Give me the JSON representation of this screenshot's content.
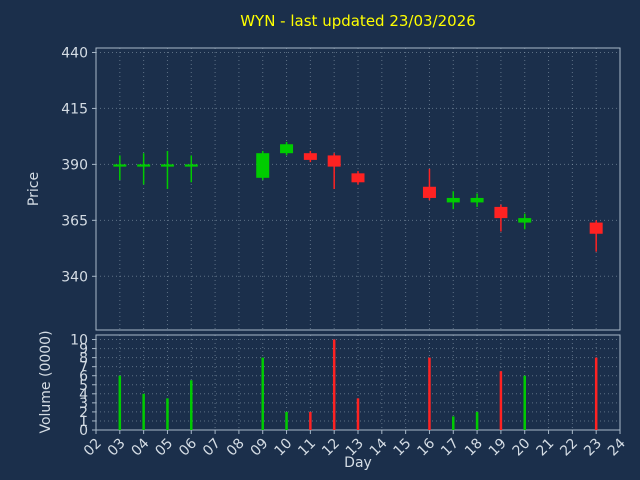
{
  "chart_data": {
    "type": "candlestick",
    "title": "WYN - last updated 23/03/2026",
    "xlabel": "Day",
    "ylabel_price": "Price",
    "ylabel_volume": "Volume (0000)",
    "x_tick_labels": [
      "02",
      "03",
      "04",
      "05",
      "06",
      "07",
      "08",
      "09",
      "10",
      "11",
      "12",
      "13",
      "14",
      "15",
      "16",
      "17",
      "18",
      "19",
      "20",
      "21",
      "22",
      "23",
      "24"
    ],
    "price_ticks": [
      340,
      365,
      390,
      415,
      440
    ],
    "volume_ticks": [
      0,
      1,
      2,
      3,
      4,
      5,
      6,
      7,
      8,
      9,
      10
    ],
    "price_ylim": [
      316,
      442
    ],
    "volume_ylim": [
      0,
      10.5
    ],
    "day_range": [
      2,
      24
    ],
    "grid": true,
    "legend": "none",
    "colors": {
      "up": "#00cc00",
      "down": "#ff2222",
      "title": "#ffff00",
      "background": "#1b2f4b",
      "grid": "#9fb0c0",
      "spine": "#a8b8c8",
      "tick_label": "#d4dce4"
    },
    "candles": [
      {
        "day": 3,
        "open": 389,
        "high": 394,
        "low": 383,
        "close": 390,
        "volume": 6
      },
      {
        "day": 4,
        "open": 389,
        "high": 395,
        "low": 381,
        "close": 390,
        "volume": 4
      },
      {
        "day": 5,
        "open": 389,
        "high": 396,
        "low": 379,
        "close": 390,
        "volume": 3.5
      },
      {
        "day": 6,
        "open": 389,
        "high": 394,
        "low": 382,
        "close": 390,
        "volume": 5.5
      },
      {
        "day": 9,
        "open": 384,
        "high": 396,
        "low": 383,
        "close": 395,
        "volume": 8
      },
      {
        "day": 10,
        "open": 395,
        "high": 400,
        "low": 394,
        "close": 399,
        "volume": 2
      },
      {
        "day": 11,
        "open": 395,
        "high": 396,
        "low": 391,
        "close": 392,
        "volume": 2
      },
      {
        "day": 12,
        "open": 394,
        "high": 395,
        "low": 379,
        "close": 389,
        "volume": 10
      },
      {
        "day": 13,
        "open": 386,
        "high": 387,
        "low": 381,
        "close": 382,
        "volume": 3.5
      },
      {
        "day": 16,
        "open": 380,
        "high": 388,
        "low": 374,
        "close": 375,
        "volume": 8
      },
      {
        "day": 17,
        "open": 373,
        "high": 378,
        "low": 370,
        "close": 375,
        "volume": 1.5
      },
      {
        "day": 18,
        "open": 373,
        "high": 377,
        "low": 371,
        "close": 375,
        "volume": 2
      },
      {
        "day": 19,
        "open": 371,
        "high": 372,
        "low": 360,
        "close": 366,
        "volume": 6.5
      },
      {
        "day": 20,
        "open": 364,
        "high": 368,
        "low": 361,
        "close": 366,
        "volume": 6
      },
      {
        "day": 23,
        "open": 364,
        "high": 365,
        "low": 351,
        "close": 359,
        "volume": 8
      }
    ]
  }
}
